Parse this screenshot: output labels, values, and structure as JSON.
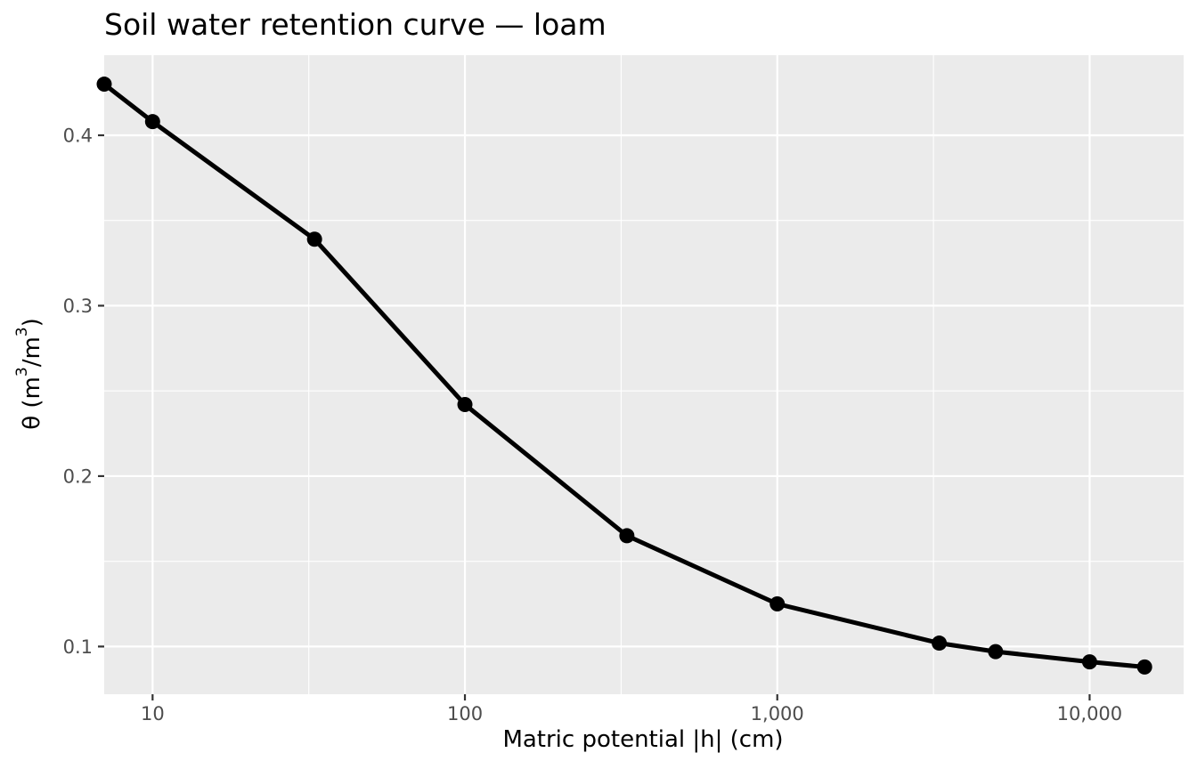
{
  "chart_data": {
    "type": "line",
    "title": "Soil water retention curve — loam",
    "xlabel": "Matric potential |h| (cm)",
    "ylabel": {
      "prefix": "θ (m",
      "sup1": "3",
      "mid": "/m",
      "sup2": "3",
      "suffix": ")"
    },
    "x_scale": "log10",
    "xlim": [
      7,
      20000
    ],
    "ylim": [
      0.072,
      0.447
    ],
    "x_ticks": [
      10,
      100,
      1000,
      10000
    ],
    "x_tick_labels": [
      "10",
      "100",
      "1,000",
      "10,000"
    ],
    "y_ticks": [
      0.1,
      0.2,
      0.3,
      0.4
    ],
    "y_tick_labels": [
      "0.1",
      "0.2",
      "0.3",
      "0.4"
    ],
    "grid": true,
    "series": [
      {
        "x": [
          7,
          10,
          33,
          100,
          330,
          1000,
          3300,
          5000,
          10000,
          15000
        ],
        "y": [
          0.43,
          0.408,
          0.339,
          0.242,
          0.165,
          0.125,
          0.102,
          0.097,
          0.091,
          0.088
        ]
      }
    ],
    "colors": {
      "panel": "#ebebeb",
      "grid": "#ffffff",
      "line": "#000000",
      "tick_text": "#4d4d4d"
    }
  }
}
